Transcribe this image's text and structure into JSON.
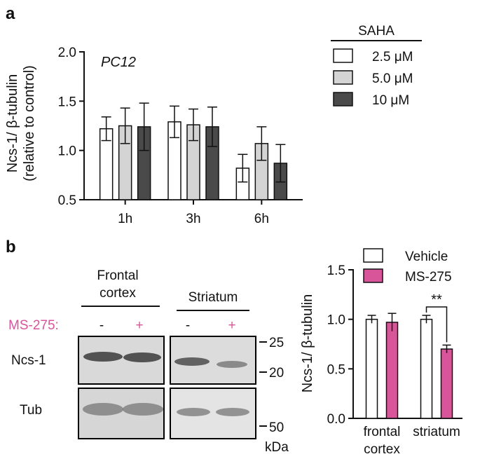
{
  "panel_a": {
    "letter": "a",
    "chart_note": "PC12",
    "legend_title": "SAHA",
    "colors": {
      "s1": "#ffffff",
      "s2": "#d4d4d4",
      "s3": "#4a4a4a"
    }
  },
  "panel_b": {
    "letter": "b",
    "blot": {
      "region_labels": [
        [
          "Frontal",
          "cortex"
        ],
        [
          "Striatum"
        ]
      ],
      "treatment_label": "MS-275:",
      "lane_marks": [
        "-",
        "+",
        "-",
        "+"
      ],
      "row_labels": [
        "Ncs-1",
        "Tub"
      ],
      "mw_markers": [
        "25",
        "20",
        "50"
      ],
      "mw_unit": "kDa",
      "treatment_color": "#d8559a"
    },
    "colors": {
      "vehicle": "#ffffff",
      "ms275": "#d8559a"
    },
    "significance": "**"
  },
  "chart_data": [
    {
      "type": "bar",
      "panel": "a",
      "title": "",
      "annotation": "PC12",
      "categories": [
        "1h",
        "3h",
        "6h"
      ],
      "legend_title": "SAHA",
      "series": [
        {
          "name": "2.5 μM",
          "values": [
            1.22,
            1.29,
            0.82
          ],
          "errors": [
            0.12,
            0.16,
            0.14
          ]
        },
        {
          "name": "5.0 μM",
          "values": [
            1.25,
            1.26,
            1.07
          ],
          "errors": [
            0.18,
            0.16,
            0.17
          ]
        },
        {
          "name": "10 μM",
          "values": [
            1.24,
            1.24,
            0.87
          ],
          "errors": [
            0.24,
            0.2,
            0.19
          ]
        }
      ],
      "ylabel": [
        "Ncs-1/ β-tubulin",
        "(relative to control)"
      ],
      "xlabel": "",
      "ylim": [
        0.5,
        2.0
      ],
      "yticks": [
        "0.5",
        "1.0",
        "1.5",
        "2.0"
      ],
      "legend_position": "top-right"
    },
    {
      "type": "bar",
      "panel": "b",
      "title": "",
      "categories": [
        [
          "frontal",
          "cortex"
        ],
        [
          "striatum"
        ]
      ],
      "series": [
        {
          "name": "Vehicle",
          "values": [
            1.0,
            1.0
          ],
          "errors": [
            0.04,
            0.04
          ]
        },
        {
          "name": "MS-275",
          "values": [
            0.97,
            0.7
          ],
          "errors": [
            0.09,
            0.04
          ]
        }
      ],
      "ylabel": "Ncs-1/ β-tubulin",
      "xlabel": "",
      "ylim": [
        0.0,
        1.5
      ],
      "yticks": [
        "0.0",
        "0.5",
        "1.0",
        "1.5"
      ],
      "legend_position": "top",
      "annotations": [
        {
          "category_index": 1,
          "text": "**"
        }
      ]
    }
  ]
}
